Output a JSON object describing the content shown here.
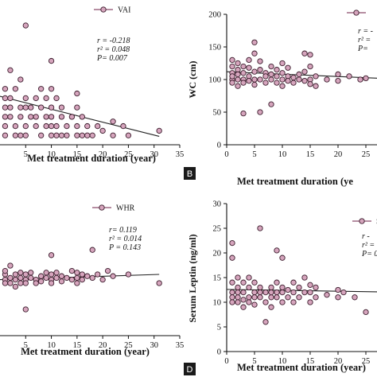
{
  "chart_data": [
    {
      "type": "scatter",
      "panel_id": "A",
      "xlabel": "Met treatment duration (year)",
      "ylabel": "",
      "legend": "VAI",
      "legend_position": "top-right",
      "stats": [
        "r = -0.218",
        "r² = 0.048",
        "P= 0.007"
      ],
      "xlim": [
        0,
        35
      ],
      "ylim": [
        0,
        14
      ],
      "xticks": [
        "5",
        "10",
        "15",
        "20",
        "25",
        "30",
        "35"
      ],
      "yticks": [],
      "fit": [
        [
          0,
          5.2
        ],
        [
          31,
          0.9
        ]
      ],
      "points": [
        [
          1,
          4
        ],
        [
          1,
          5
        ],
        [
          1,
          6
        ],
        [
          1,
          3
        ],
        [
          1,
          2
        ],
        [
          1,
          1
        ],
        [
          2,
          8
        ],
        [
          2,
          5
        ],
        [
          2,
          3
        ],
        [
          2,
          4
        ],
        [
          3,
          6
        ],
        [
          3,
          2
        ],
        [
          3,
          1
        ],
        [
          4,
          7
        ],
        [
          4,
          4
        ],
        [
          4,
          3
        ],
        [
          4,
          1
        ],
        [
          5,
          12.8
        ],
        [
          5,
          5
        ],
        [
          5,
          4
        ],
        [
          5,
          2
        ],
        [
          5,
          1
        ],
        [
          6,
          3
        ],
        [
          6,
          4
        ],
        [
          7,
          2
        ],
        [
          7,
          5
        ],
        [
          7,
          3
        ],
        [
          8,
          4
        ],
        [
          8,
          1
        ],
        [
          8,
          6
        ],
        [
          9,
          2
        ],
        [
          9,
          3
        ],
        [
          9,
          5
        ],
        [
          10,
          9
        ],
        [
          10,
          6
        ],
        [
          10,
          4
        ],
        [
          10,
          3
        ],
        [
          10,
          1
        ],
        [
          10,
          2
        ],
        [
          11,
          5
        ],
        [
          11,
          2
        ],
        [
          11,
          1
        ],
        [
          12,
          3
        ],
        [
          12,
          4
        ],
        [
          12,
          1
        ],
        [
          13,
          2
        ],
        [
          13,
          1
        ],
        [
          14,
          3
        ],
        [
          15,
          5.5
        ],
        [
          15,
          4
        ],
        [
          15,
          1
        ],
        [
          15,
          2
        ],
        [
          16,
          3
        ],
        [
          16,
          1
        ],
        [
          17,
          2
        ],
        [
          17,
          1
        ],
        [
          18,
          1
        ],
        [
          19,
          2
        ],
        [
          20,
          1.5
        ],
        [
          22,
          2.5
        ],
        [
          22,
          1
        ],
        [
          24,
          2
        ],
        [
          25,
          1
        ],
        [
          31,
          1.5
        ]
      ]
    },
    {
      "type": "scatter",
      "panel_id": "B",
      "xlabel": "Met treatment duration (ye",
      "ylabel": "WC (cm)",
      "legend": "",
      "legend_position": "top-right",
      "stats": [
        "r = -",
        "r² =",
        "P="
      ],
      "xlim": [
        0,
        27
      ],
      "ylim": [
        0,
        200
      ],
      "xticks": [
        "0",
        "5",
        "10",
        "15",
        "20",
        "25"
      ],
      "yticks": [
        "0",
        "50",
        "100",
        "150",
        "200"
      ],
      "fit": [
        [
          0,
          112
        ],
        [
          27,
          102
        ]
      ],
      "points": [
        [
          1,
          100
        ],
        [
          1,
          110
        ],
        [
          1,
          120
        ],
        [
          1,
          95
        ],
        [
          1,
          130
        ],
        [
          1,
          105
        ],
        [
          2,
          115
        ],
        [
          2,
          125
        ],
        [
          2,
          100
        ],
        [
          2,
          90
        ],
        [
          2,
          108
        ],
        [
          3,
          120
        ],
        [
          3,
          100
        ],
        [
          3,
          110
        ],
        [
          3,
          48
        ],
        [
          3,
          95
        ],
        [
          4,
          130
        ],
        [
          4,
          105
        ],
        [
          4,
          98
        ],
        [
          4,
          118
        ],
        [
          5,
          157
        ],
        [
          5,
          140
        ],
        [
          5,
          112
        ],
        [
          5,
          100
        ],
        [
          5,
          92
        ],
        [
          6,
          100
        ],
        [
          6,
          128
        ],
        [
          6,
          50
        ],
        [
          6,
          115
        ],
        [
          7,
          110
        ],
        [
          7,
          95
        ],
        [
          7,
          105
        ],
        [
          8,
          120
        ],
        [
          8,
          100
        ],
        [
          8,
          62
        ],
        [
          8,
          108
        ],
        [
          9,
          105
        ],
        [
          9,
          95
        ],
        [
          9,
          115
        ],
        [
          10,
          100
        ],
        [
          10,
          110
        ],
        [
          10,
          90
        ],
        [
          10,
          125
        ],
        [
          11,
          105
        ],
        [
          11,
          118
        ],
        [
          11,
          98
        ],
        [
          12,
          95
        ],
        [
          12,
          103
        ],
        [
          13,
          108
        ],
        [
          13,
          100
        ],
        [
          14,
          140
        ],
        [
          14,
          98
        ],
        [
          14,
          112
        ],
        [
          15,
          138
        ],
        [
          15,
          120
        ],
        [
          15,
          100
        ],
        [
          15,
          93
        ],
        [
          16,
          105
        ],
        [
          16,
          90
        ],
        [
          18,
          100
        ],
        [
          20,
          108
        ],
        [
          20,
          98
        ],
        [
          22,
          105
        ],
        [
          24,
          100
        ],
        [
          25,
          102
        ]
      ]
    },
    {
      "type": "scatter",
      "panel_id": "C",
      "xlabel": "Met treatment duration (year)",
      "ylabel": "",
      "legend": "WHR",
      "legend_position": "top-right",
      "stats": [
        "r= 0.119",
        "r² = 0.014",
        "P = 0.143"
      ],
      "xlim": [
        0,
        35
      ],
      "ylim": [
        0.6,
        1.3
      ],
      "xticks": [
        "5",
        "10",
        "15",
        "20",
        "25",
        "30",
        "35"
      ],
      "yticks": [],
      "fit": [
        [
          0,
          0.92
        ],
        [
          31,
          0.95
        ]
      ],
      "points": [
        [
          1,
          0.92
        ],
        [
          1,
          0.95
        ],
        [
          1,
          0.9
        ],
        [
          1,
          0.97
        ],
        [
          2,
          0.93
        ],
        [
          2,
          0.9
        ],
        [
          2,
          1.0
        ],
        [
          3,
          0.92
        ],
        [
          3,
          0.95
        ],
        [
          3,
          0.88
        ],
        [
          4,
          0.93
        ],
        [
          4,
          0.96
        ],
        [
          4,
          0.9
        ],
        [
          5,
          0.75
        ],
        [
          5,
          0.92
        ],
        [
          5,
          0.95
        ],
        [
          5,
          0.9
        ],
        [
          6,
          0.93
        ],
        [
          6,
          0.96
        ],
        [
          7,
          0.92
        ],
        [
          7,
          0.9
        ],
        [
          8,
          0.94
        ],
        [
          8,
          0.91
        ],
        [
          9,
          0.93
        ],
        [
          9,
          0.96
        ],
        [
          10,
          1.06
        ],
        [
          10,
          0.95
        ],
        [
          10,
          0.92
        ],
        [
          10,
          0.9
        ],
        [
          11,
          0.93
        ],
        [
          11,
          0.96
        ],
        [
          12,
          0.94
        ],
        [
          12,
          0.91
        ],
        [
          13,
          0.93
        ],
        [
          14,
          0.97
        ],
        [
          14,
          0.92
        ],
        [
          15,
          0.96
        ],
        [
          15,
          0.93
        ],
        [
          15,
          0.9
        ],
        [
          16,
          0.95
        ],
        [
          16,
          0.92
        ],
        [
          17,
          0.94
        ],
        [
          18,
          1.09
        ],
        [
          18,
          0.93
        ],
        [
          19,
          0.95
        ],
        [
          20,
          0.92
        ],
        [
          21,
          0.97
        ],
        [
          22,
          0.94
        ],
        [
          25,
          0.95
        ],
        [
          31,
          0.9
        ]
      ]
    },
    {
      "type": "scatter",
      "panel_id": "D",
      "xlabel": "Met treatment duration (year)",
      "ylabel": "Serum Leptin (ng/ml)",
      "legend": "S.",
      "legend_position": "top-right",
      "stats": [
        "r -",
        "r² = 0",
        "P= 0"
      ],
      "xlim": [
        0,
        27
      ],
      "ylim": [
        0,
        30
      ],
      "xticks": [
        "0",
        "5",
        "10",
        "15",
        "20",
        "25"
      ],
      "yticks": [
        "0",
        "5",
        "10",
        "15",
        "20",
        "25",
        "30"
      ],
      "fit": [
        [
          0,
          12.6
        ],
        [
          27,
          12.1
        ]
      ],
      "points": [
        [
          1,
          22
        ],
        [
          1,
          19
        ],
        [
          1,
          12
        ],
        [
          1,
          11
        ],
        [
          1,
          10
        ],
        [
          1,
          14
        ],
        [
          2,
          13
        ],
        [
          2,
          11
        ],
        [
          2,
          15
        ],
        [
          2,
          10
        ],
        [
          2,
          12
        ],
        [
          3,
          12
        ],
        [
          3,
          10.5
        ],
        [
          3,
          14
        ],
        [
          3,
          9
        ],
        [
          4,
          11
        ],
        [
          4,
          13
        ],
        [
          4,
          15
        ],
        [
          4,
          10
        ],
        [
          5,
          12
        ],
        [
          5,
          11
        ],
        [
          5,
          14
        ],
        [
          5,
          9.5
        ],
        [
          6,
          25
        ],
        [
          6,
          12
        ],
        [
          6,
          11
        ],
        [
          6,
          13
        ],
        [
          7,
          6
        ],
        [
          7,
          12
        ],
        [
          7,
          10
        ],
        [
          8,
          11
        ],
        [
          8,
          13
        ],
        [
          8,
          9
        ],
        [
          8,
          12
        ],
        [
          9,
          20.5
        ],
        [
          9,
          12
        ],
        [
          9,
          11
        ],
        [
          9,
          14
        ],
        [
          10,
          19
        ],
        [
          10,
          12
        ],
        [
          10,
          10
        ],
        [
          10,
          13
        ],
        [
          11,
          11
        ],
        [
          11,
          12.5
        ],
        [
          12,
          14
        ],
        [
          12,
          10
        ],
        [
          12,
          12
        ],
        [
          13,
          11
        ],
        [
          13,
          13
        ],
        [
          14,
          12
        ],
        [
          14,
          15
        ],
        [
          15,
          12
        ],
        [
          15,
          10
        ],
        [
          15,
          13.5
        ],
        [
          16,
          11
        ],
        [
          16,
          13
        ],
        [
          18,
          11.5
        ],
        [
          20,
          12.5
        ],
        [
          20,
          11
        ],
        [
          21,
          12
        ],
        [
          23,
          11
        ],
        [
          25,
          8
        ]
      ]
    }
  ],
  "panel_labels": [
    "B",
    "D"
  ]
}
